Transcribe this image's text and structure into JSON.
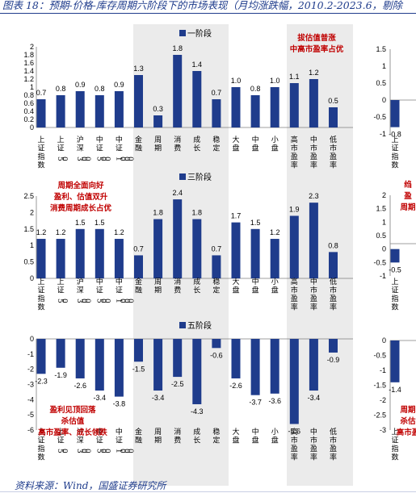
{
  "header": {
    "title": "图表 18：预期-价格-库存周期六阶段下的市场表现（月均涨跌幅，2010.2-2023.6，剔除"
  },
  "footer": {
    "source": "资料来源：Wind，国盛证券研究所"
  },
  "colors": {
    "bar": "#1f3c8c",
    "shade": "#ebebeb",
    "annotation": "#c00000",
    "axis": "#7f7f7f"
  },
  "chart_data": [
    {
      "type": "bar",
      "series": [
        {
          "name": "一阶段",
          "values": [
            0.7,
            0.8,
            0.9,
            0.8,
            0.9,
            1.3,
            0.3,
            1.8,
            1.4,
            0.7,
            1.0,
            0.8,
            1.0,
            1.1,
            1.2,
            0.5
          ]
        }
      ],
      "categories": [
        "上证指数",
        "上证50",
        "沪深300",
        "中证500",
        "中证1000",
        "金融",
        "周期",
        "消费",
        "成长",
        "稳定",
        "大盘",
        "中盘",
        "小盘",
        "高市盈率",
        "中市盈率",
        "低市盈率"
      ],
      "ylim": [
        0,
        2
      ],
      "yticks": [
        "0",
        "0.2",
        "0.4",
        "0.6",
        "0.8",
        "1",
        "1.2",
        "1.4",
        "1.6",
        "1.8",
        "2"
      ],
      "annotation": [
        "拔估值普涨",
        "中高市盈率占优"
      ]
    },
    {
      "type": "bar",
      "series": [
        {
          "name": "三阶段",
          "values": [
            1.2,
            1.2,
            1.5,
            1.5,
            1.2,
            0.7,
            1.8,
            2.4,
            1.8,
            0.7,
            1.7,
            1.5,
            1.2,
            1.9,
            2.3,
            0.8
          ]
        }
      ],
      "categories": [
        "上证指数",
        "上证50",
        "沪深300",
        "中证500",
        "中证1000",
        "金融",
        "周期",
        "消费",
        "成长",
        "稳定",
        "大盘",
        "中盘",
        "小盘",
        "高市盈率",
        "中市盈率",
        "低市盈率"
      ],
      "ylim": [
        0,
        2.5
      ],
      "yticks": [
        "0",
        "0.5",
        "1",
        "1.5",
        "2",
        "2.5"
      ],
      "annotation": [
        "周期全面向好",
        "盈利、估值双升",
        "消费周期成长占优"
      ]
    },
    {
      "type": "bar",
      "series": [
        {
          "name": "五阶段",
          "values": [
            -2.3,
            -1.9,
            -2.6,
            -3.4,
            -3.8,
            -1.5,
            -3.4,
            -2.5,
            -4.3,
            -0.6,
            -2.6,
            -3.7,
            -3.6,
            -5.6,
            -3.4,
            -0.9
          ]
        }
      ],
      "categories": [
        "上证指数",
        "上证50",
        "沪深300",
        "中证500",
        "中证1000",
        "金融",
        "周期",
        "消费",
        "成长",
        "稳定",
        "大盘",
        "中盘",
        "小盘",
        "高市盈率",
        "中市盈率",
        "低市盈率"
      ],
      "ylim": [
        -6,
        0
      ],
      "yticks": [
        "0",
        "-1",
        "-2",
        "-3",
        "-4",
        "-5",
        "-6"
      ],
      "annotation": [
        "盈利见顶回落",
        "杀估值",
        "高市盈率、成长领跌"
      ]
    },
    {
      "type": "bar",
      "series": [
        {
          "name": "",
          "values": [
            -0.8
          ]
        }
      ],
      "categories": [
        "上证指数"
      ],
      "ylim": [
        -1,
        1.5
      ],
      "yticks": [
        "1.5",
        "1",
        "0.5",
        "0",
        "-0.5",
        "-1"
      ]
    },
    {
      "type": "bar",
      "series": [
        {
          "name": "",
          "values": [
            -0.5
          ]
        }
      ],
      "categories": [
        "上证指数"
      ],
      "ylim": [
        -1,
        2
      ],
      "yticks": [
        "2",
        "1.5",
        "1",
        "0.5",
        "0",
        "-0.5",
        "-1"
      ],
      "annotation": [
        "绉",
        "盈",
        "周期"
      ]
    },
    {
      "type": "bar",
      "series": [
        {
          "name": "",
          "values": [
            -1.4
          ]
        }
      ],
      "categories": [
        "上证指数"
      ],
      "ylim": [
        -3,
        0
      ],
      "yticks": [
        "0",
        "-0.5",
        "-1",
        "-1.5",
        "-2",
        "-2.5",
        "-3"
      ],
      "annotation": [
        "周期",
        "杀估",
        "高市盈"
      ]
    }
  ]
}
